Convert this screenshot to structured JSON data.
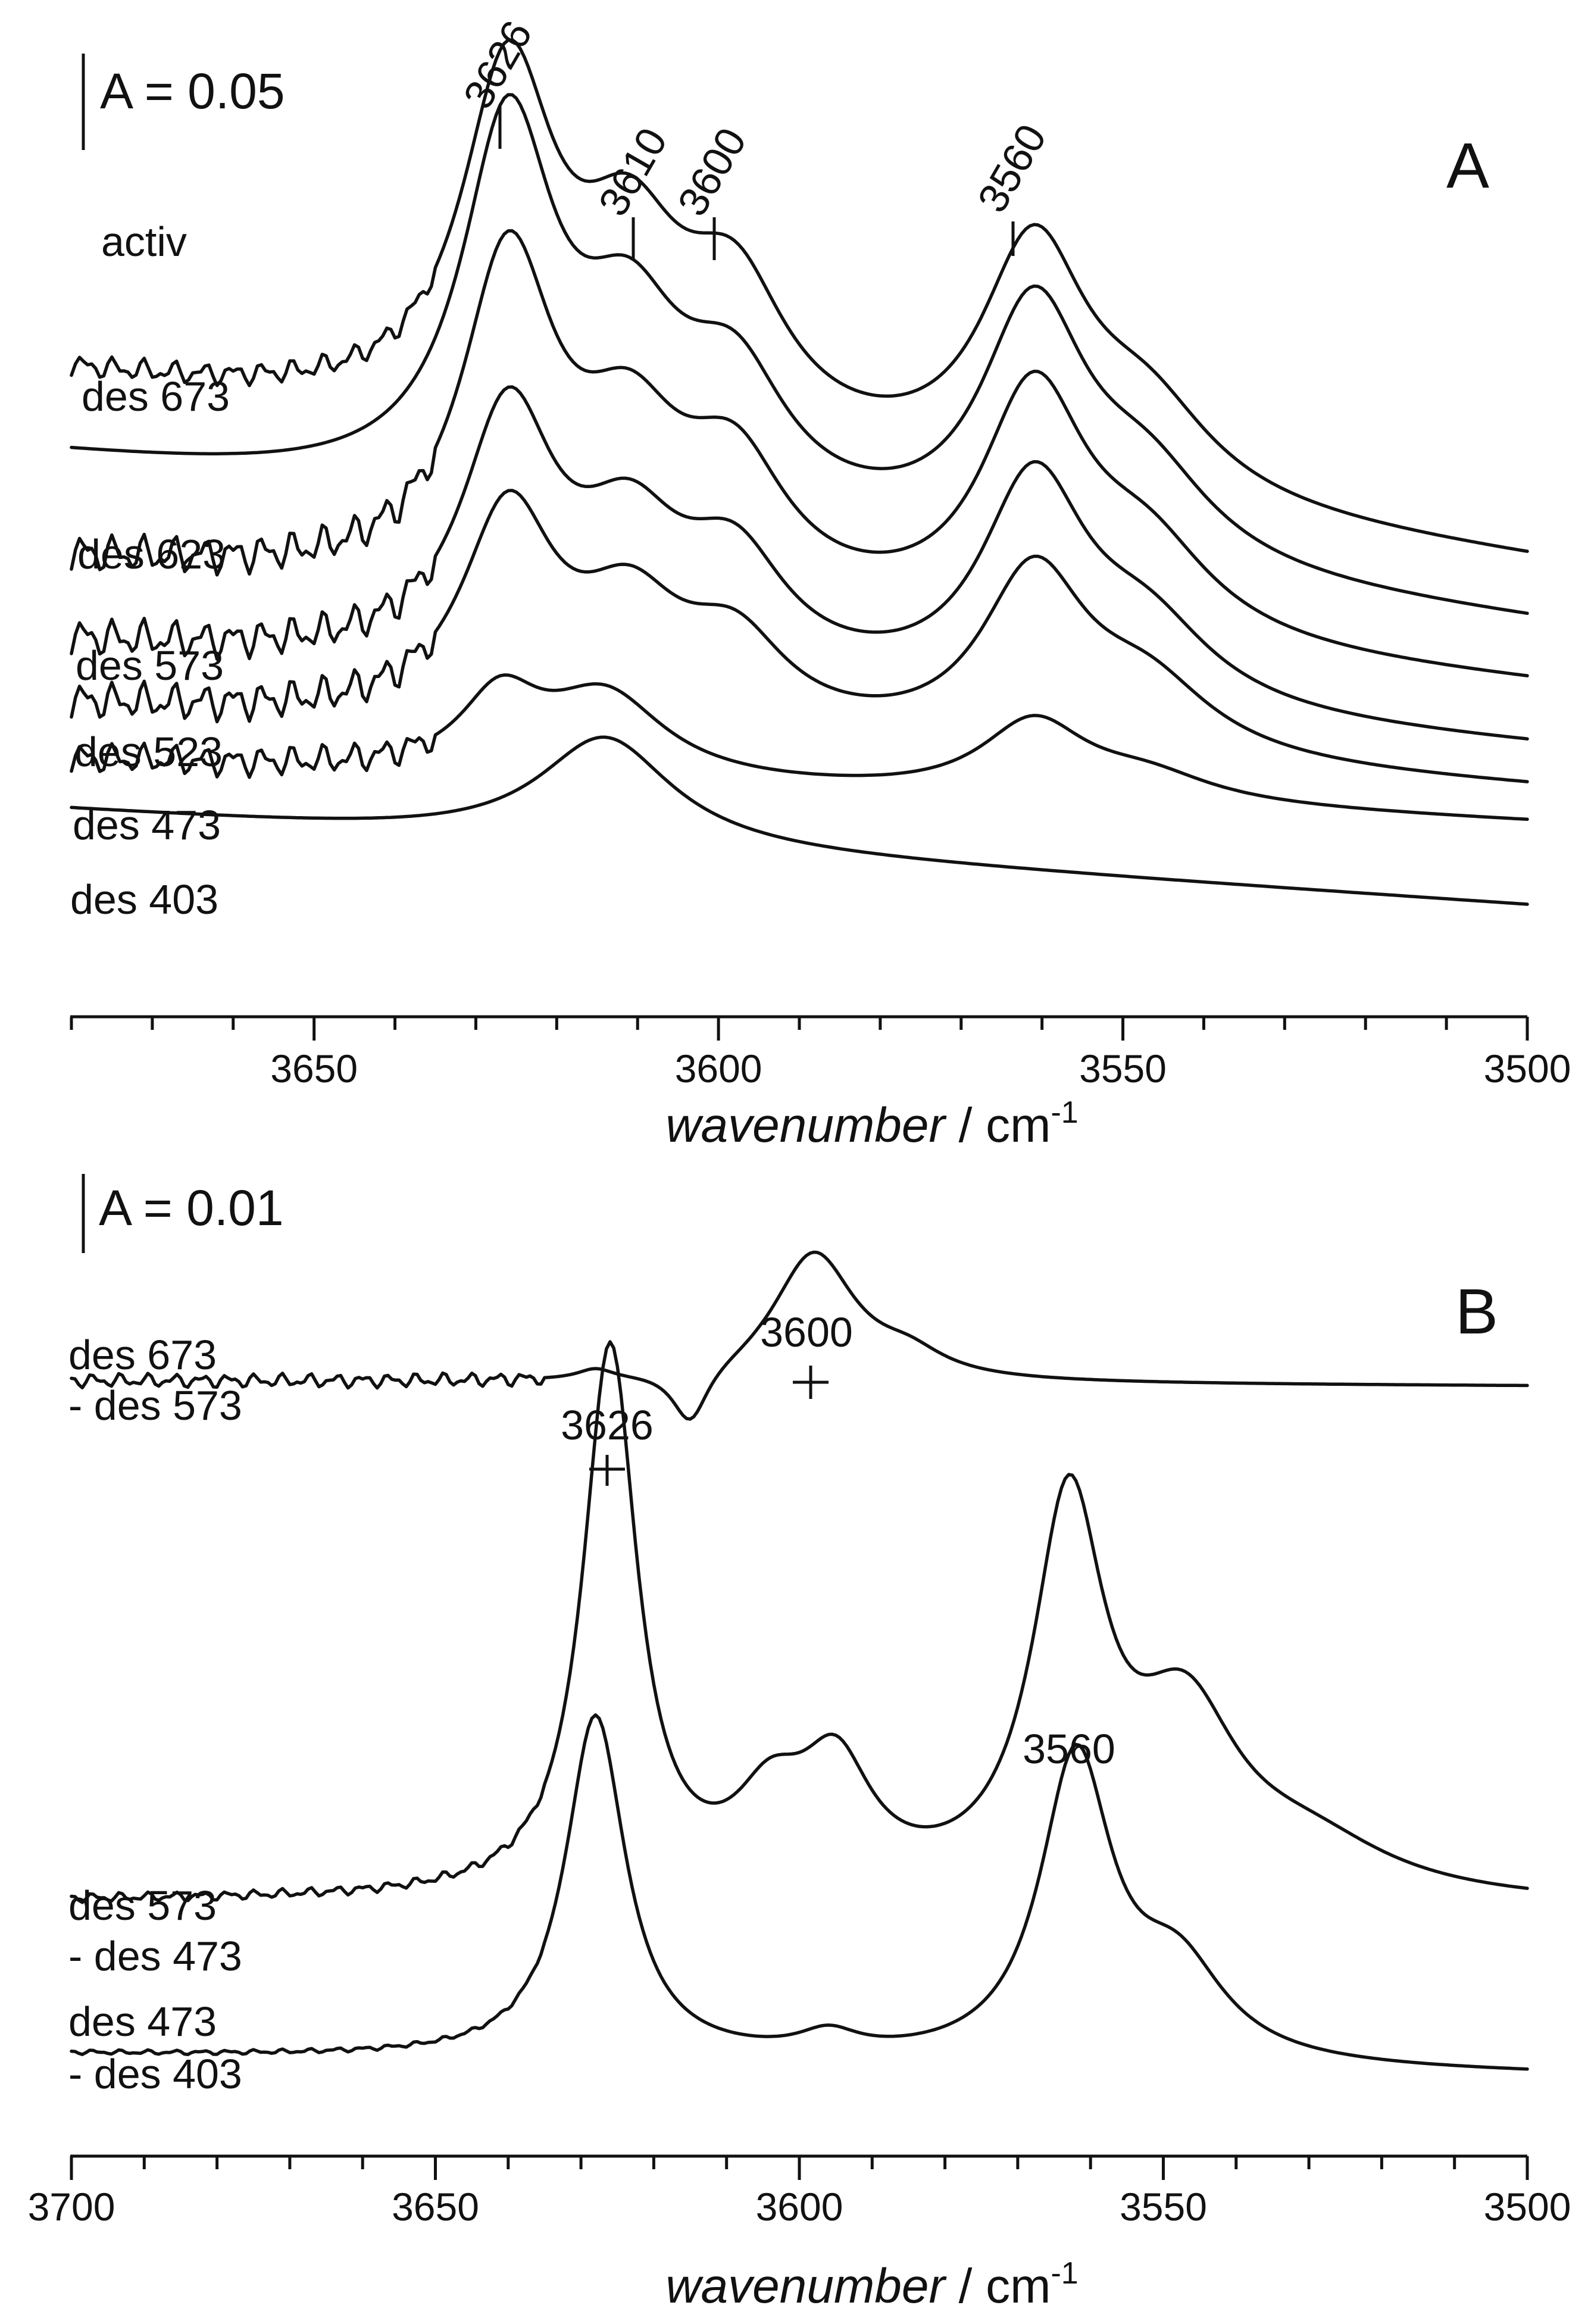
{
  "chart_data": [
    {
      "type": "line",
      "panel_label": "A",
      "scale_bar_label": "A = 0.05",
      "xlabel_italic": "wavenumber",
      "xlabel_unit_prefix": " / cm",
      "xlabel_unit_exp": "-1",
      "xlim": [
        3680,
        3500
      ],
      "x_ticks": [
        3650,
        3600,
        3550,
        3500
      ],
      "x_ticks_text": [
        "3650",
        "3600",
        "3550",
        "3500"
      ],
      "peak_labels": [
        {
          "x": 3626,
          "text": "3626"
        },
        {
          "x": 3610,
          "text": "3610"
        },
        {
          "x": 3600,
          "text": "3600"
        },
        {
          "x": 3560,
          "text": "3560"
        }
      ],
      "series": [
        {
          "name": "activ",
          "label": "activ",
          "baseline": 0.155,
          "tail": -0.045,
          "noise": 0.003,
          "peaks": [
            {
              "center": 3626,
              "amp": 0.082,
              "width": 7
            },
            {
              "center": 3611,
              "amp": 0.04,
              "width": 8
            },
            {
              "center": 3598,
              "amp": 0.034,
              "width": 8
            },
            {
              "center": 3561,
              "amp": 0.056,
              "width": 8
            },
            {
              "center": 3547,
              "amp": 0.02,
              "width": 10
            }
          ]
        },
        {
          "name": "des 673",
          "label": "des 673",
          "baseline": 0.135,
          "tail": -0.04,
          "noise": 0.0,
          "peaks": [
            {
              "center": 3626,
              "amp": 0.088,
              "width": 7
            },
            {
              "center": 3611,
              "amp": 0.038,
              "width": 8
            },
            {
              "center": 3598,
              "amp": 0.03,
              "width": 8
            },
            {
              "center": 3561,
              "amp": 0.058,
              "width": 8
            },
            {
              "center": 3547,
              "amp": 0.02,
              "width": 10
            }
          ]
        },
        {
          "name": "des 623",
          "label": "des 623",
          "baseline": 0.11,
          "tail": -0.03,
          "noise": 0.005,
          "peaks": [
            {
              "center": 3626,
              "amp": 0.078,
              "width": 7
            },
            {
              "center": 3611,
              "amp": 0.034,
              "width": 8
            },
            {
              "center": 3598,
              "amp": 0.03,
              "width": 8
            },
            {
              "center": 3561,
              "amp": 0.056,
              "width": 8
            },
            {
              "center": 3547,
              "amp": 0.02,
              "width": 10
            }
          ]
        },
        {
          "name": "des 573",
          "label": "des 573",
          "baseline": 0.09,
          "tail": -0.025,
          "noise": 0.005,
          "peaks": [
            {
              "center": 3626,
              "amp": 0.06,
              "width": 7
            },
            {
              "center": 3611,
              "amp": 0.03,
              "width": 8
            },
            {
              "center": 3598,
              "amp": 0.026,
              "width": 8
            },
            {
              "center": 3561,
              "amp": 0.052,
              "width": 8
            },
            {
              "center": 3547,
              "amp": 0.018,
              "width": 10
            }
          ]
        },
        {
          "name": "des 523",
          "label": "des 523",
          "baseline": 0.075,
          "tail": -0.02,
          "noise": 0.005,
          "peaks": [
            {
              "center": 3626,
              "amp": 0.05,
              "width": 7
            },
            {
              "center": 3611,
              "amp": 0.026,
              "width": 8
            },
            {
              "center": 3598,
              "amp": 0.02,
              "width": 8
            },
            {
              "center": 3561,
              "amp": 0.042,
              "width": 8
            },
            {
              "center": 3547,
              "amp": 0.016,
              "width": 10
            }
          ]
        },
        {
          "name": "des 473",
          "label": "des 473",
          "baseline": 0.062,
          "tail": -0.015,
          "noise": 0.004,
          "peaks": [
            {
              "center": 3627,
              "amp": 0.018,
              "width": 6
            },
            {
              "center": 3614,
              "amp": 0.02,
              "width": 9
            },
            {
              "center": 3561,
              "amp": 0.018,
              "width": 8
            },
            {
              "center": 3547,
              "amp": 0.006,
              "width": 10
            }
          ]
        },
        {
          "name": "des 403",
          "label": "des 403",
          "baseline": 0.05,
          "tail": -0.023,
          "noise": 0.0,
          "peaks": [
            {
              "center": 3614,
              "amp": 0.026,
              "width": 10
            }
          ]
        }
      ]
    },
    {
      "type": "line",
      "panel_label": "B",
      "scale_bar_label": "A = 0.01",
      "xlabel_italic": "wavenumber",
      "xlabel_unit_prefix": " / cm",
      "xlabel_unit_exp": "-1",
      "xlim": [
        3700,
        3500
      ],
      "x_ticks": [
        3700,
        3650,
        3600,
        3550,
        3500
      ],
      "x_ticks_text": [
        "3700",
        "3650",
        "3600",
        "3550",
        "3500"
      ],
      "peak_labels": [
        {
          "x": 3626,
          "text": "3626"
        },
        {
          "x": 3598,
          "text": "3600"
        },
        {
          "x": 3562,
          "text": "3560"
        }
      ],
      "series": [
        {
          "name": "des 673 - des 573",
          "label_line1": "des 673",
          "label_line2": "- des 573",
          "baseline": 0.0225,
          "tail": -0.0002,
          "noise": 0.0003,
          "peaks": [
            {
              "center": 3628,
              "amp": 0.0004,
              "width": 3
            },
            {
              "center": 3615,
              "amp": -0.0022,
              "width": 3
            },
            {
              "center": 3598,
              "amp": 0.0051,
              "width": 7
            },
            {
              "center": 3585,
              "amp": 0.0008,
              "width": 6
            }
          ]
        },
        {
          "name": "des 573 - des 473",
          "label_line1": "des 573",
          "label_line2": "- des 473",
          "baseline": 0.002,
          "tail": -0.0002,
          "noise": 0.0002,
          "peaks": [
            {
              "center": 3626,
              "amp": 0.0215,
              "width": 4.5
            },
            {
              "center": 3604,
              "amp": 0.003,
              "width": 6
            },
            {
              "center": 3595,
              "amp": 0.0045,
              "width": 6
            },
            {
              "center": 3563,
              "amp": 0.0148,
              "width": 6
            },
            {
              "center": 3547,
              "amp": 0.0065,
              "width": 9
            },
            {
              "center": 3530,
              "amp": 0.0018,
              "width": 14
            }
          ]
        },
        {
          "name": "des 473 - des 403",
          "label_line1": "des 473",
          "label_line2": "- des 403",
          "baseline": -0.004,
          "tail": -0.0008,
          "noise": 0.0001,
          "peaks": [
            {
              "center": 3628,
              "amp": 0.0135,
              "width": 5
            },
            {
              "center": 3596,
              "amp": 0.0008,
              "width": 5
            },
            {
              "center": 3562,
              "amp": 0.0118,
              "width": 6
            },
            {
              "center": 3548,
              "amp": 0.0035,
              "width": 8
            }
          ]
        }
      ]
    }
  ]
}
